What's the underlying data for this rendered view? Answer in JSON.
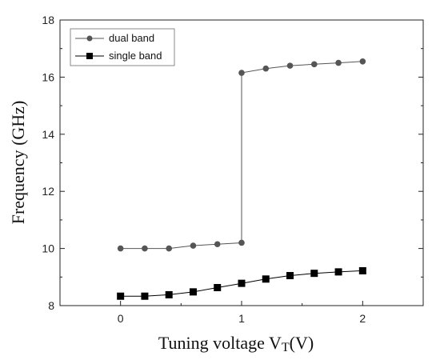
{
  "chart_data": {
    "type": "line",
    "xlabel": "Tuning voltage V",
    "xlabel_subscript": "T",
    "xlabel_suffix": "(V)",
    "ylabel": "Frequency (GHz)",
    "xlim": [
      -0.5,
      2.5
    ],
    "ylim": [
      8,
      18
    ],
    "x_ticks": [
      0,
      1,
      2
    ],
    "y_ticks": [
      8,
      10,
      12,
      14,
      16,
      18
    ],
    "grid": false,
    "legend_position": "top-left",
    "series": [
      {
        "name": "dual band",
        "marker": "circle",
        "color": "#555555",
        "x": [
          0,
          0.2,
          0.4,
          0.6,
          0.8,
          1.0,
          1.0,
          1.2,
          1.4,
          1.6,
          1.8,
          2.0
        ],
        "values": [
          10.0,
          10.0,
          10.0,
          10.1,
          10.15,
          10.2,
          16.15,
          16.3,
          16.4,
          16.45,
          16.5,
          16.55
        ],
        "marker_mask": [
          true,
          true,
          true,
          true,
          true,
          true,
          true,
          true,
          true,
          true,
          true,
          true
        ]
      },
      {
        "name": "single band",
        "marker": "square",
        "color": "#000000",
        "x": [
          0,
          0.2,
          0.4,
          0.6,
          0.8,
          1.0,
          1.2,
          1.4,
          1.6,
          1.8,
          2.0
        ],
        "values": [
          8.33,
          8.33,
          8.38,
          8.48,
          8.63,
          8.78,
          8.93,
          9.05,
          9.13,
          9.18,
          9.22
        ]
      }
    ]
  }
}
